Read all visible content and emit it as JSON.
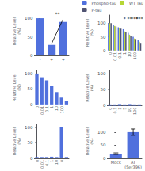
{
  "chart_data": [
    {
      "type": "bar",
      "categories": [
        "-",
        "+",
        "+"
      ],
      "values": [
        100,
        28,
        90
      ],
      "ylabel": "Relative Level\n(%)",
      "ylim": [
        0,
        130
      ],
      "yticks": [
        0,
        50,
        100
      ],
      "grid": false,
      "lines": [
        {
          "x": [
            1,
            2
          ],
          "y": [
            32,
            98
          ]
        }
      ],
      "annotations": [
        {
          "text": "**",
          "x": 1.5,
          "y": 105
        }
      ]
    },
    {
      "type": "bar",
      "categories": [
        "0",
        "0.01",
        "0.1",
        "1",
        "10",
        "100",
        null
      ],
      "series": [
        {
          "name": "Phospho-tau",
          "values": [
            100,
            92,
            85,
            78,
            65,
            50,
            38
          ]
        },
        {
          "name": "WT Tau",
          "values": [
            100,
            90,
            82,
            70,
            58,
            44,
            32
          ]
        },
        {
          "name": "P-tau",
          "values": [
            100,
            88,
            80,
            68,
            55,
            42,
            28
          ]
        }
      ],
      "ylabel": "Relative Level\n(%)",
      "ylim": [
        0,
        130
      ],
      "yticks": [
        0,
        50,
        100
      ],
      "grid": false,
      "legend": "upper right",
      "annotations": [
        {
          "text": "*",
          "x": 3,
          "y": 108
        },
        {
          "text": "**",
          "x": 4,
          "y": 108
        },
        {
          "text": "***",
          "x": 5,
          "y": 108
        },
        {
          "text": "***",
          "x": 6,
          "y": 108
        }
      ]
    },
    {
      "type": "bar",
      "categories": [
        "0",
        "0.01",
        "0.1",
        "1",
        "10",
        "100",
        null
      ],
      "values": [
        100,
        88,
        78,
        60,
        40,
        22,
        10
      ],
      "ylabel": "Relative Level\n(%)",
      "ylim": [
        0,
        110
      ],
      "yticks": [
        0,
        50,
        100
      ],
      "grid": false
    },
    {
      "type": "bar",
      "categories": [
        "0",
        "0.1",
        "1",
        "5",
        "10",
        "100",
        null
      ],
      "values": [
        4,
        4,
        5,
        4,
        5,
        4,
        4
      ],
      "ylabel": "Relative Level\n(%)",
      "ylim": [
        0,
        110
      ],
      "yticks": [
        0,
        50,
        100
      ],
      "grid": false
    },
    {
      "type": "bar",
      "categories": [
        "0",
        "0.01",
        "0.1",
        "1",
        "10",
        "0",
        null
      ],
      "values": [
        4,
        4,
        4,
        5,
        4,
        100,
        4
      ],
      "ylabel": "Relative Level\n(%)",
      "ylim": [
        0,
        110
      ],
      "yticks": [
        0,
        50,
        100
      ],
      "grid": false
    },
    {
      "type": "bar",
      "categories": [
        "Mock",
        "AT\n(Ser396)"
      ],
      "values": [
        18,
        100
      ],
      "yerr": [
        3,
        12
      ],
      "ylabel": "Relative Level\n(%)",
      "ylim": [
        0,
        130
      ],
      "yticks": [
        0,
        50,
        100
      ],
      "grid": false
    }
  ]
}
